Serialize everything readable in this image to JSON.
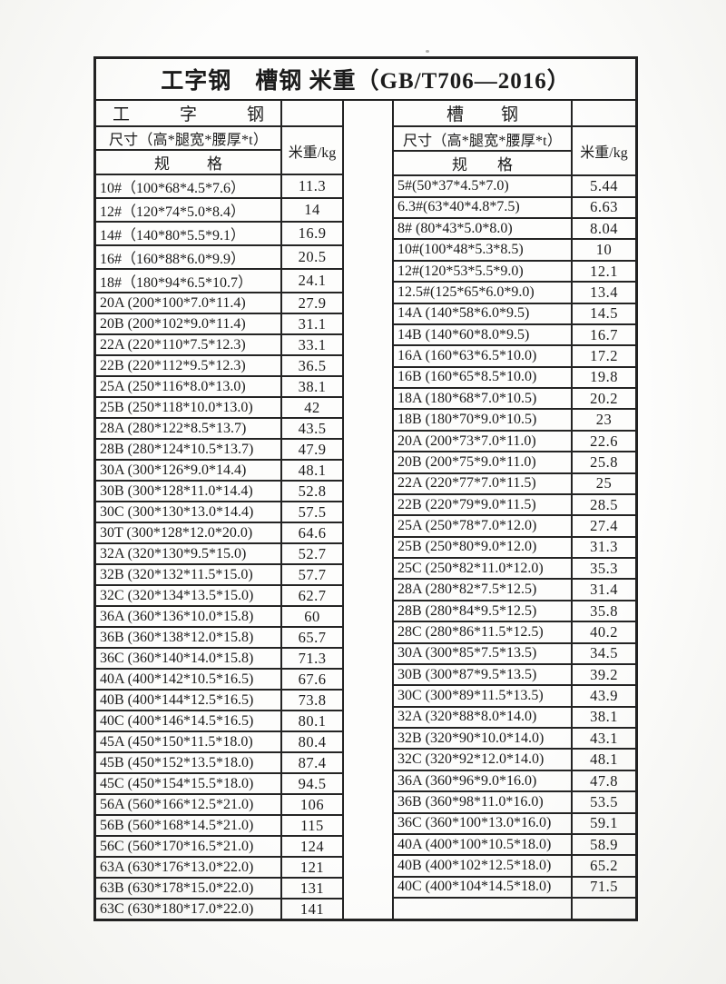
{
  "title": "工字钢　槽钢 米重（GB/T706—2016）",
  "tables": [
    {
      "name": "i-beam",
      "group_header": "工 字 钢",
      "size_header": "尺寸（高*腿宽*腰厚*t）",
      "spec_header": "规 格",
      "weight_header": "米重/kg",
      "rows": [
        {
          "spec": "10#（100*68*4.5*7.6）",
          "weight": "11.3"
        },
        {
          "spec": "12#（120*74*5.0*8.4）",
          "weight": "14"
        },
        {
          "spec": "14#（140*80*5.5*9.1）",
          "weight": "16.9"
        },
        {
          "spec": "16#（160*88*6.0*9.9）",
          "weight": "20.5"
        },
        {
          "spec": "18#（180*94*6.5*10.7）",
          "weight": "24.1"
        },
        {
          "spec": "20A (200*100*7.0*11.4)",
          "weight": "27.9"
        },
        {
          "spec": "20B (200*102*9.0*11.4)",
          "weight": "31.1"
        },
        {
          "spec": "22A (220*110*7.5*12.3)",
          "weight": "33.1"
        },
        {
          "spec": "22B (220*112*9.5*12.3)",
          "weight": "36.5"
        },
        {
          "spec": "25A (250*116*8.0*13.0)",
          "weight": "38.1"
        },
        {
          "spec": "25B (250*118*10.0*13.0)",
          "weight": "42"
        },
        {
          "spec": "28A (280*122*8.5*13.7)",
          "weight": "43.5"
        },
        {
          "spec": "28B (280*124*10.5*13.7)",
          "weight": "47.9"
        },
        {
          "spec": "30A (300*126*9.0*14.4)",
          "weight": "48.1"
        },
        {
          "spec": "30B (300*128*11.0*14.4)",
          "weight": "52.8"
        },
        {
          "spec": "30C (300*130*13.0*14.4)",
          "weight": "57.5"
        },
        {
          "spec": "30T (300*128*12.0*20.0)",
          "weight": "64.6"
        },
        {
          "spec": "32A (320*130*9.5*15.0)",
          "weight": "52.7"
        },
        {
          "spec": "32B (320*132*11.5*15.0)",
          "weight": "57.7"
        },
        {
          "spec": "32C (320*134*13.5*15.0)",
          "weight": "62.7"
        },
        {
          "spec": "36A (360*136*10.0*15.8)",
          "weight": "60"
        },
        {
          "spec": "36B (360*138*12.0*15.8)",
          "weight": "65.7"
        },
        {
          "spec": "36C (360*140*14.0*15.8)",
          "weight": "71.3"
        },
        {
          "spec": "40A (400*142*10.5*16.5)",
          "weight": "67.6"
        },
        {
          "spec": "40B (400*144*12.5*16.5)",
          "weight": "73.8"
        },
        {
          "spec": "40C (400*146*14.5*16.5)",
          "weight": "80.1"
        },
        {
          "spec": "45A (450*150*11.5*18.0)",
          "weight": "80.4"
        },
        {
          "spec": "45B (450*152*13.5*18.0)",
          "weight": "87.4"
        },
        {
          "spec": "45C (450*154*15.5*18.0)",
          "weight": "94.5"
        },
        {
          "spec": "56A (560*166*12.5*21.0)",
          "weight": "106"
        },
        {
          "spec": "56B (560*168*14.5*21.0)",
          "weight": "115"
        },
        {
          "spec": "56C (560*170*16.5*21.0)",
          "weight": "124"
        },
        {
          "spec": "63A (630*176*13.0*22.0)",
          "weight": "121"
        },
        {
          "spec": "63B (630*178*15.0*22.0)",
          "weight": "131"
        },
        {
          "spec": "63C (630*180*17.0*22.0)",
          "weight": "141"
        }
      ]
    },
    {
      "name": "channel-steel",
      "group_header": "槽 钢",
      "size_header": "尺寸（高*腿宽*腰厚*t）",
      "spec_header": "规 格",
      "weight_header": "米重/kg",
      "rows": [
        {
          "spec": "5#(50*37*4.5*7.0)",
          "weight": "5.44"
        },
        {
          "spec": "6.3#(63*40*4.8*7.5)",
          "weight": "6.63"
        },
        {
          "spec": "8# (80*43*5.0*8.0)",
          "weight": "8.04"
        },
        {
          "spec": "10#(100*48*5.3*8.5)",
          "weight": "10"
        },
        {
          "spec": "12#(120*53*5.5*9.0)",
          "weight": "12.1"
        },
        {
          "spec": "12.5#(125*65*6.0*9.0)",
          "weight": "13.4"
        },
        {
          "spec": "14A (140*58*6.0*9.5)",
          "weight": "14.5"
        },
        {
          "spec": "14B (140*60*8.0*9.5)",
          "weight": "16.7"
        },
        {
          "spec": "16A (160*63*6.5*10.0)",
          "weight": "17.2"
        },
        {
          "spec": "16B (160*65*8.5*10.0)",
          "weight": "19.8"
        },
        {
          "spec": "18A (180*68*7.0*10.5)",
          "weight": "20.2"
        },
        {
          "spec": "18B (180*70*9.0*10.5)",
          "weight": "23"
        },
        {
          "spec": "20A (200*73*7.0*11.0)",
          "weight": "22.6"
        },
        {
          "spec": "20B (200*75*9.0*11.0)",
          "weight": "25.8"
        },
        {
          "spec": "22A (220*77*7.0*11.5)",
          "weight": "25"
        },
        {
          "spec": "22B (220*79*9.0*11.5)",
          "weight": "28.5"
        },
        {
          "spec": "25A (250*78*7.0*12.0)",
          "weight": "27.4"
        },
        {
          "spec": "25B (250*80*9.0*12.0)",
          "weight": "31.3"
        },
        {
          "spec": "25C (250*82*11.0*12.0)",
          "weight": "35.3"
        },
        {
          "spec": "28A (280*82*7.5*12.5)",
          "weight": "31.4"
        },
        {
          "spec": "28B (280*84*9.5*12.5)",
          "weight": "35.8"
        },
        {
          "spec": "28C (280*86*11.5*12.5)",
          "weight": "40.2"
        },
        {
          "spec": "30A (300*85*7.5*13.5)",
          "weight": "34.5"
        },
        {
          "spec": "30B (300*87*9.5*13.5)",
          "weight": "39.2"
        },
        {
          "spec": "30C (300*89*11.5*13.5)",
          "weight": "43.9"
        },
        {
          "spec": "32A (320*88*8.0*14.0)",
          "weight": "38.1"
        },
        {
          "spec": "32B (320*90*10.0*14.0)",
          "weight": "43.1"
        },
        {
          "spec": "32C (320*92*12.0*14.0)",
          "weight": "48.1"
        },
        {
          "spec": "36A (360*96*9.0*16.0)",
          "weight": "47.8"
        },
        {
          "spec": "36B (360*98*11.0*16.0)",
          "weight": "53.5"
        },
        {
          "spec": "36C (360*100*13.0*16.0)",
          "weight": "59.1"
        },
        {
          "spec": "40A (400*100*10.5*18.0)",
          "weight": "58.9"
        },
        {
          "spec": "40B (400*102*12.5*18.0)",
          "weight": "65.2"
        },
        {
          "spec": "40C (400*104*14.5*18.0)",
          "weight": "71.5"
        },
        {
          "spec": "",
          "weight": ""
        }
      ]
    }
  ],
  "ink_color": "#1b1b1b",
  "border_color": "#222222",
  "paper_color": "#f6f6f3"
}
